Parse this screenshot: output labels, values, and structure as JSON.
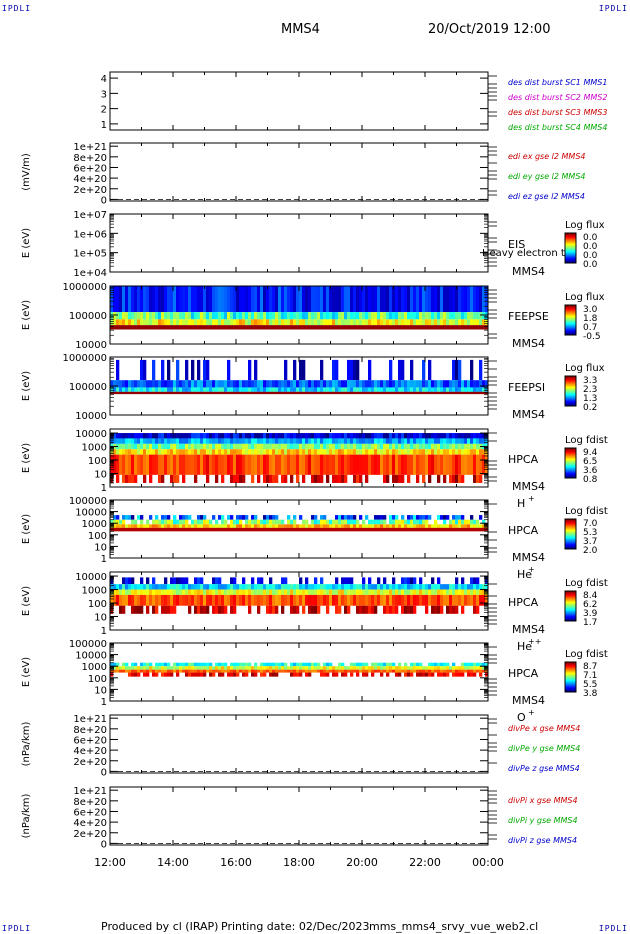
{
  "corner_label": "IPDLI",
  "header": {
    "title": "MMS4",
    "date": "20/Oct/2019 12:00"
  },
  "footer": {
    "produced_by": "Produced by cl (IRAP)",
    "printing_date": "Printing date: 02/Dec/2023",
    "file": "mms_mms4_srvy_vue_web2.cl"
  },
  "chart_data": [
    {
      "type": "line",
      "id": "p1",
      "ylabel": "",
      "ticks": [
        {
          "v": 1,
          "t": "1"
        },
        {
          "v": 2,
          "t": "2"
        },
        {
          "v": 3,
          "t": "3"
        },
        {
          "v": 4,
          "t": "4"
        }
      ],
      "ylim": [
        0.6,
        4.4
      ],
      "legend": [
        {
          "text": "des dist burst SC1 MMS1",
          "color": "#0000cc"
        },
        {
          "text": "des dist burst SC2 MMS2",
          "color": "#cc00cc"
        },
        {
          "text": "des dist burst SC3 MMS3",
          "color": "#cc0000"
        },
        {
          "text": "des dist burst SC4 MMS4",
          "color": "#00aa00"
        }
      ]
    },
    {
      "type": "line",
      "id": "p2",
      "ylabel": "(mV/m)",
      "ticks": [
        {
          "v": 0,
          "t": "0"
        },
        {
          "v": 2,
          "t": "2e+20"
        },
        {
          "v": 4,
          "t": "4e+20"
        },
        {
          "v": 6,
          "t": "6e+20"
        },
        {
          "v": 8,
          "t": "8e+20"
        },
        {
          "v": 10,
          "t": "1e+21"
        }
      ],
      "ylim": [
        -0.3,
        10.6
      ],
      "dashed_zero": true,
      "legend": [
        {
          "text": "edi ex gse l2 MMS4",
          "color": "#cc0000"
        },
        {
          "text": "edi ey gse l2 MMS4",
          "color": "#00aa00"
        },
        {
          "text": "edi ez gse l2 MMS4",
          "color": "#0000cc"
        }
      ]
    },
    {
      "type": "heatmap",
      "id": "p3",
      "ylabel": "E (eV)",
      "log": true,
      "ticks": [
        {
          "v": 4,
          "t": "1e+04"
        },
        {
          "v": 5,
          "t": "1e+05"
        },
        {
          "v": 6,
          "t": "1e+06"
        },
        {
          "v": 7,
          "t": "1e+07"
        }
      ],
      "ylim": [
        4,
        7
      ],
      "instrument": "EIS",
      "spacecraft": "MMS4",
      "overlay": "Heavy electron to",
      "colorbar": {
        "title": "Log flux",
        "labels": [
          "0.0",
          "0.0",
          "0.0",
          "0.0"
        ]
      },
      "bands": []
    },
    {
      "type": "heatmap",
      "id": "p4",
      "ylabel": "E (eV)",
      "log": true,
      "ticks": [
        {
          "v": 4,
          "t": "10000"
        },
        {
          "v": 5,
          "t": "100000"
        },
        {
          "v": 6,
          "t": "1000000"
        }
      ],
      "ylim": [
        4,
        6
      ],
      "instrument": "FEEPSE",
      "spacecraft": "MMS4",
      "colorbar": {
        "title": "Log flux",
        "labels": [
          "3.0",
          "1.8",
          "0.7",
          "-0.5"
        ]
      },
      "bands": [
        {
          "lo": 5.1,
          "hi": 6.0,
          "level": 0.15,
          "jitter": 0.1
        },
        {
          "lo": 4.85,
          "hi": 5.1,
          "level": 0.45,
          "jitter": 0.15
        },
        {
          "lo": 4.65,
          "hi": 4.85,
          "level": 0.62,
          "jitter": 0.12
        },
        {
          "lo": 4.5,
          "hi": 4.65,
          "level": 0.98,
          "jitter": 0.0
        }
      ]
    },
    {
      "type": "heatmap",
      "id": "p5",
      "ylabel": "E (eV)",
      "log": true,
      "ticks": [
        {
          "v": 4,
          "t": "10000"
        },
        {
          "v": 5,
          "t": "100000"
        },
        {
          "v": 6,
          "t": "1000000"
        }
      ],
      "ylim": [
        4,
        6
      ],
      "instrument": "FEEPSI",
      "spacecraft": "MMS4",
      "colorbar": {
        "title": "Log flux",
        "labels": [
          "3.3",
          "2.3",
          "1.3",
          "0.2"
        ]
      },
      "bands": [
        {
          "lo": 5.2,
          "hi": 5.9,
          "level": 0.1,
          "jitter": 0.1,
          "sparse": 0.75
        },
        {
          "lo": 4.95,
          "hi": 5.2,
          "level": 0.22,
          "jitter": 0.1
        },
        {
          "lo": 4.8,
          "hi": 4.95,
          "level": 0.35,
          "jitter": 0.1
        },
        {
          "lo": 4.72,
          "hi": 4.8,
          "level": 0.98,
          "jitter": 0.0
        }
      ]
    },
    {
      "type": "heatmap",
      "id": "p6",
      "ylabel": "E (eV)",
      "log": true,
      "ticks": [
        {
          "v": 0,
          "t": "1"
        },
        {
          "v": 1,
          "t": "10"
        },
        {
          "v": 2,
          "t": "100"
        },
        {
          "v": 3,
          "t": "1000"
        },
        {
          "v": 4,
          "t": "10000"
        }
      ],
      "ylim": [
        0,
        4.3
      ],
      "instrument": "HPCA",
      "spacecraft": "MMS4",
      "species": "H",
      "sup": "+",
      "colorbar": {
        "title": "Log fdist",
        "labels": [
          "9.4",
          "6.5",
          "3.6",
          "0.8"
        ]
      },
      "bands": [
        {
          "lo": 3.6,
          "hi": 4.0,
          "level": 0.1,
          "jitter": 0.1
        },
        {
          "lo": 3.2,
          "hi": 3.6,
          "level": 0.3,
          "jitter": 0.1
        },
        {
          "lo": 2.8,
          "hi": 3.2,
          "level": 0.5,
          "jitter": 0.1
        },
        {
          "lo": 2.4,
          "hi": 2.8,
          "level": 0.65,
          "jitter": 0.1
        },
        {
          "lo": 0.9,
          "hi": 2.4,
          "level": 0.82,
          "jitter": 0.08
        },
        {
          "lo": 0.3,
          "hi": 0.9,
          "level": 0.9,
          "jitter": 0.1,
          "sparse": 0.4
        }
      ]
    },
    {
      "type": "heatmap",
      "id": "p7",
      "ylabel": "E (eV)",
      "log": true,
      "ticks": [
        {
          "v": 0,
          "t": "1"
        },
        {
          "v": 1,
          "t": "10"
        },
        {
          "v": 2,
          "t": "100"
        },
        {
          "v": 3,
          "t": "1000"
        },
        {
          "v": 4,
          "t": "10000"
        },
        {
          "v": 5,
          "t": "100000"
        }
      ],
      "ylim": [
        0,
        5
      ],
      "instrument": "HPCA",
      "spacecraft": "MMS4",
      "species": "He",
      "sup": "+",
      "colorbar": {
        "title": "Log fdist",
        "labels": [
          "7.0",
          "5.3",
          "3.7",
          "2.0"
        ]
      },
      "bands": [
        {
          "lo": 3.3,
          "hi": 3.7,
          "level": 0.2,
          "jitter": 0.2,
          "sparse": 0.4
        },
        {
          "lo": 2.9,
          "hi": 3.3,
          "level": 0.5,
          "jitter": 0.15,
          "sparse": 0.15
        },
        {
          "lo": 2.6,
          "hi": 2.9,
          "level": 0.68,
          "jitter": 0.1
        },
        {
          "lo": 2.3,
          "hi": 2.6,
          "level": 0.95,
          "jitter": 0.0
        }
      ]
    },
    {
      "type": "heatmap",
      "id": "p8",
      "ylabel": "E (eV)",
      "log": true,
      "ticks": [
        {
          "v": 0,
          "t": "1"
        },
        {
          "v": 1,
          "t": "10"
        },
        {
          "v": 2,
          "t": "100"
        },
        {
          "v": 3,
          "t": "1000"
        },
        {
          "v": 4,
          "t": "10000"
        }
      ],
      "ylim": [
        0,
        4.3
      ],
      "instrument": "HPCA",
      "spacecraft": "MMS4",
      "species": "He",
      "sup": "++",
      "colorbar": {
        "title": "Log fdist",
        "labels": [
          "8.4",
          "6.2",
          "3.9",
          "1.7"
        ]
      },
      "bands": [
        {
          "lo": 3.4,
          "hi": 3.9,
          "level": 0.1,
          "jitter": 0.1,
          "sparse": 0.5
        },
        {
          "lo": 3.0,
          "hi": 3.4,
          "level": 0.35,
          "jitter": 0.1
        },
        {
          "lo": 2.6,
          "hi": 3.0,
          "level": 0.6,
          "jitter": 0.1
        },
        {
          "lo": 1.8,
          "hi": 2.6,
          "level": 0.8,
          "jitter": 0.08
        },
        {
          "lo": 1.2,
          "hi": 1.8,
          "level": 0.92,
          "jitter": 0.1,
          "sparse": 0.35
        }
      ]
    },
    {
      "type": "heatmap",
      "id": "p9",
      "ylabel": "E (eV)",
      "log": true,
      "ticks": [
        {
          "v": 0,
          "t": "1"
        },
        {
          "v": 1,
          "t": "10"
        },
        {
          "v": 2,
          "t": "100"
        },
        {
          "v": 3,
          "t": "1000"
        },
        {
          "v": 4,
          "t": "10000"
        },
        {
          "v": 5,
          "t": "100000"
        }
      ],
      "ylim": [
        0,
        5
      ],
      "instrument": "HPCA",
      "spacecraft": "MMS4",
      "species": "O",
      "sup": "+",
      "colorbar": {
        "title": "Log fdist",
        "labels": [
          "8.7",
          "7.1",
          "5.5",
          "3.8"
        ]
      },
      "bands": [
        {
          "lo": 3.0,
          "hi": 3.3,
          "level": 0.4,
          "jitter": 0.1,
          "sparse": 0.2
        },
        {
          "lo": 2.7,
          "hi": 3.0,
          "level": 0.6,
          "jitter": 0.1
        },
        {
          "lo": 2.45,
          "hi": 2.7,
          "level": 0.78,
          "jitter": 0.06
        },
        {
          "lo": 2.1,
          "hi": 2.45,
          "level": 0.9,
          "jitter": 0.08,
          "sparse": 0.3
        }
      ]
    },
    {
      "type": "line",
      "id": "p10",
      "ylabel": "(nPa/km)",
      "ticks": [
        {
          "v": 0,
          "t": "0"
        },
        {
          "v": 2,
          "t": "2e+20"
        },
        {
          "v": 4,
          "t": "4e+20"
        },
        {
          "v": 6,
          "t": "6e+20"
        },
        {
          "v": 8,
          "t": "8e+20"
        },
        {
          "v": 10,
          "t": "1e+21"
        }
      ],
      "ylim": [
        -0.3,
        10.6
      ],
      "dashed_zero": true,
      "legend": [
        {
          "text": "divPe x gse MMS4",
          "color": "#cc0000"
        },
        {
          "text": "divPe y gse MMS4",
          "color": "#00aa00"
        },
        {
          "text": "divPe z gse MMS4",
          "color": "#0000cc"
        }
      ]
    },
    {
      "type": "line",
      "id": "p11",
      "ylabel": "(nPa/km)",
      "ticks": [
        {
          "v": 0,
          "t": "0"
        },
        {
          "v": 2,
          "t": "2e+20"
        },
        {
          "v": 4,
          "t": "4e+20"
        },
        {
          "v": 6,
          "t": "6e+20"
        },
        {
          "v": 8,
          "t": "8e+20"
        },
        {
          "v": 10,
          "t": "1e+21"
        }
      ],
      "ylim": [
        -0.3,
        10.6
      ],
      "dashed_zero": true,
      "legend": [
        {
          "text": "divPi x gse MMS4",
          "color": "#cc0000"
        },
        {
          "text": "divPi y gse MMS4",
          "color": "#00aa00"
        },
        {
          "text": "divPi z gse MMS4",
          "color": "#0000cc"
        }
      ]
    }
  ],
  "time_axis": {
    "ticks": [
      "12:00",
      "14:00",
      "16:00",
      "18:00",
      "20:00",
      "22:00",
      "00:00"
    ]
  }
}
